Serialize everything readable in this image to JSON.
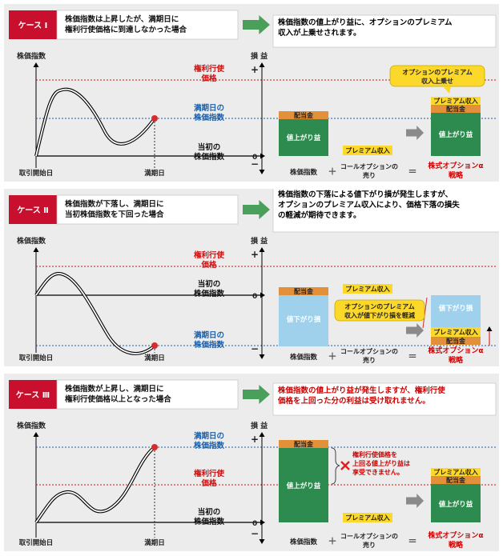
{
  "cases": [
    {
      "badge": "ケース Ⅰ",
      "desc": [
        "株価指数は上昇したが、満期日に",
        "権利行使価格に到達しなかった場合"
      ],
      "result": [
        "株価指数の値上がり益に、オプションのプレミアム",
        "収入が上乗せされます。"
      ],
      "result_color": "#000000",
      "left_axis_title": "株価指数",
      "xlabel_start": "取引開始日",
      "xlabel_end": "満期日",
      "lines": [
        {
          "label": [
            "権利行使",
            "価格"
          ],
          "style": "strike"
        },
        {
          "label": [
            "満期日の",
            "株価指数"
          ],
          "style": "expiry"
        },
        {
          "label": [
            "当初の",
            "株価指数"
          ],
          "style": "initial"
        }
      ],
      "pl_title": "損 益",
      "plus": "+",
      "minus": "−",
      "zero": "0",
      "dividend": "配当金",
      "gain_label": "値上がり益",
      "premium": "プレミアム収入",
      "callout": [
        "オプションのプレミアム",
        "収入上乗せ"
      ],
      "op_plus": "＋",
      "op_eq": "＝",
      "cap_index": "株価指数",
      "cap_call": [
        "コールオプションの",
        "売り"
      ],
      "cap_alpha": [
        "株式オプションα",
        "戦略"
      ]
    },
    {
      "badge": "ケース Ⅱ",
      "desc": [
        "株価指数が下落し、満期日に",
        "当初株価指数を下回った場合"
      ],
      "result": [
        "株価指数の下落による値下がり損が発生しますが、",
        "オプションのプレミアム収入により、価格下落の損失",
        "の軽減が期待できます。"
      ],
      "result_color": "#000000",
      "left_axis_title": "株価指数",
      "xlabel_start": "取引開始日",
      "xlabel_end": "満期日",
      "lines": [
        {
          "label": [
            "権利行使",
            "価格"
          ],
          "style": "strike"
        },
        {
          "label": [
            "当初の",
            "株価指数"
          ],
          "style": "initial"
        },
        {
          "label": [
            "満期日の",
            "株価指数"
          ],
          "style": "expiry"
        }
      ],
      "pl_title": "損 益",
      "plus": "+",
      "minus": "−",
      "zero": "0",
      "dividend": "配当金",
      "loss_label": "値下がり損",
      "premium": "プレミアム収入",
      "callout": [
        "オプションのプレミアム",
        "収入が値下がり損を軽減"
      ],
      "op_plus": "＋",
      "op_eq": "＝",
      "cap_index": "株価指数",
      "cap_call": [
        "コールオプションの",
        "売り"
      ],
      "cap_alpha": [
        "株式オプションα",
        "戦略"
      ]
    },
    {
      "badge": "ケース Ⅲ",
      "desc": [
        "株価指数が上昇し、満期日に",
        "権利行使価格以上となった場合"
      ],
      "result": [
        "株価指数の値上がり益が発生しますが、権利行使",
        "価格を上回った分の利益は受け取れません。"
      ],
      "result_color": "#cc0000",
      "left_axis_title": "株価指数",
      "xlabel_start": "取引開始日",
      "xlabel_end": "満期日",
      "lines": [
        {
          "label": [
            "満期日の",
            "株価指数"
          ],
          "style": "expiry"
        },
        {
          "label": [
            "権利行使",
            "価格"
          ],
          "style": "strike"
        },
        {
          "label": [
            "当初の",
            "株価指数"
          ],
          "style": "initial"
        }
      ],
      "pl_title": "損 益",
      "plus": "+",
      "minus": "−",
      "zero": "0",
      "dividend": "配当金",
      "gain_label": "値上がり益",
      "premium": "プレミアム収入",
      "callout": [
        "権利行使価格を",
        "上回る値上がり益は",
        "享受できません。"
      ],
      "op_plus": "＋",
      "op_eq": "＝",
      "cap_index": "株価指数",
      "cap_call": [
        "コールオプションの",
        "売り"
      ],
      "cap_alpha": [
        "株式オプションα",
        "戦略"
      ]
    }
  ],
  "colors": {
    "badge_red": "#c8102e",
    "strike_red": "#cc1111",
    "expiry_blue": "#1b5fa8",
    "gain_green": "#2e8b4f",
    "loss_blue": "#9fd1ec",
    "dividend_orange": "#e2903a",
    "premium_yellow": "#fcd82a",
    "alpha_red": "#cc0000",
    "arrow_gray": "#8a8a8a",
    "arrow_green": "#4aa05a"
  }
}
